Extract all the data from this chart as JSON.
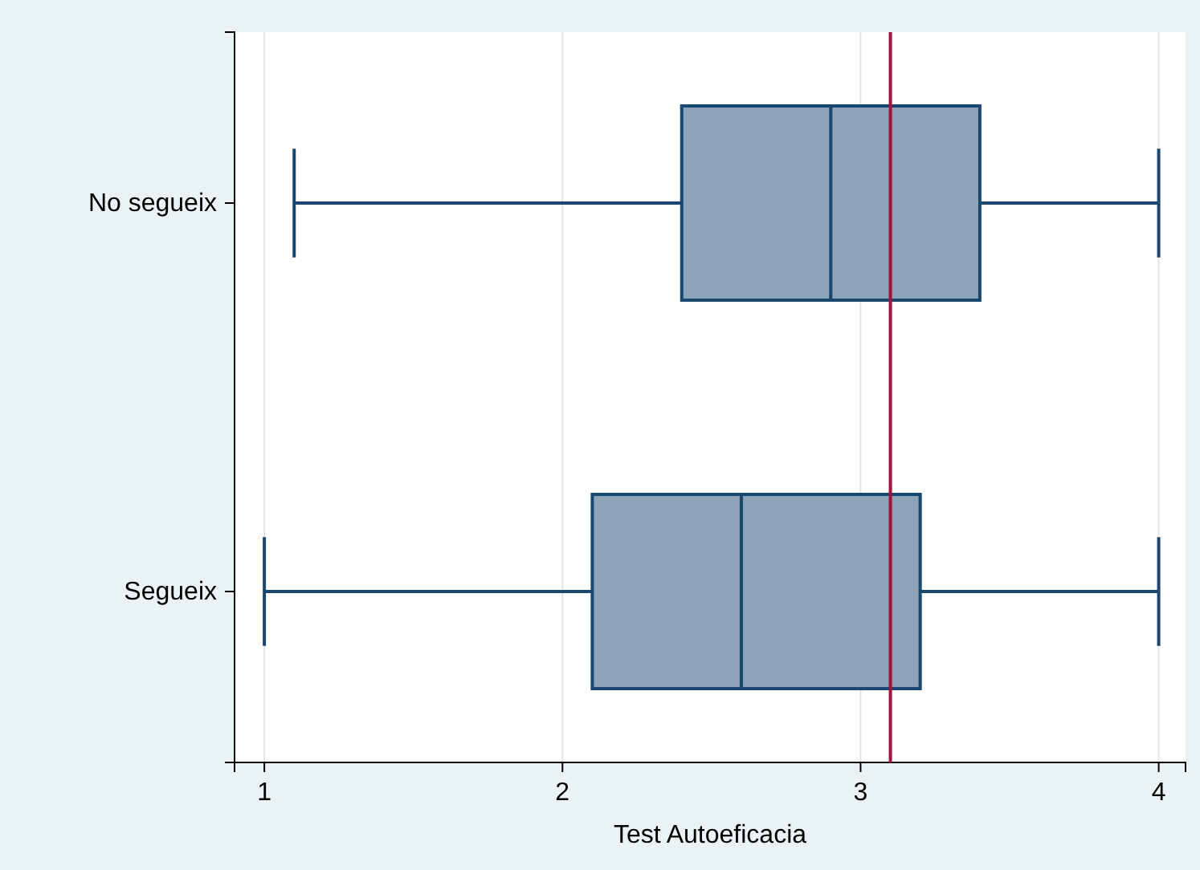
{
  "chart_data": {
    "type": "box",
    "orientation": "horizontal",
    "xlabel": "Test Autoeficacia",
    "categories": [
      "No segueix",
      "Segueix"
    ],
    "boxes": [
      {
        "low": 1.1,
        "q1": 2.4,
        "median": 2.9,
        "q3": 3.4,
        "high": 4
      },
      {
        "low": 1,
        "q1": 2.1,
        "median": 2.6,
        "q3": 3.2,
        "high": 4
      }
    ],
    "color": "#8ca3b8",
    "xlim": [
      0.9,
      4.09
    ],
    "xticks": [
      1,
      2,
      3,
      4
    ],
    "grid": "x",
    "ref_lines": [
      {
        "axis": "x",
        "value": 3.1,
        "color": "#a3123a"
      }
    ]
  }
}
